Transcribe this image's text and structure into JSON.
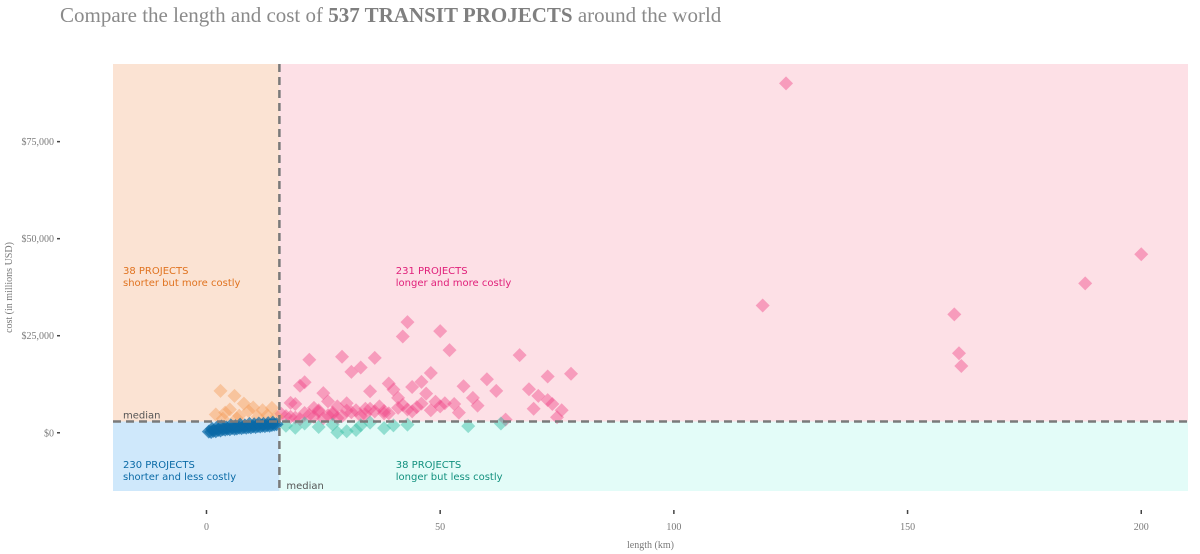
{
  "title": {
    "prefix": "Compare the length and cost of ",
    "highlight": "537 TRANSIT PROJECTS",
    "suffix": " around the world"
  },
  "chart_data": {
    "type": "scatter",
    "xlabel": "length (km)",
    "ylabel": "cost (in millions USD)",
    "xlim": [
      -20,
      210
    ],
    "ylim": [
      -15000,
      95000
    ],
    "x_ticks": [
      0,
      50,
      100,
      150,
      200
    ],
    "x_tick_labels": [
      "0",
      "50",
      "100",
      "150",
      "200"
    ],
    "y_ticks": [
      0,
      25000,
      50000,
      75000
    ],
    "y_tick_labels": [
      "$0",
      "$25,000",
      "$50,000",
      "$75,000"
    ],
    "grid": false,
    "median": {
      "x": 15.6,
      "y": 2900,
      "label": "median"
    },
    "quadrants": [
      {
        "id": "shorter-more",
        "count_label": "38 PROJECTS",
        "desc": "shorter but more costly",
        "text_color": "#e07320",
        "bg_color": "#fbe3d3"
      },
      {
        "id": "longer-more",
        "count_label": "231 PROJECTS",
        "desc": "longer and more costly",
        "text_color": "#e0207a",
        "bg_color": "#fde0e6"
      },
      {
        "id": "shorter-less",
        "count_label": "230 PROJECTS",
        "desc": "shorter and less costly",
        "text_color": "#0a6aa6",
        "bg_color": "#cfe8fb"
      },
      {
        "id": "longer-less",
        "count_label": "38 PROJECTS",
        "desc": "longer but less costly",
        "text_color": "#12907e",
        "bg_color": "#e3fcf8"
      }
    ],
    "series": [
      {
        "quadrant": "longer-more",
        "color": "#f0498a",
        "x": [
          124,
          200,
          188,
          119,
          160,
          161,
          161.5,
          43,
          42,
          50,
          52,
          33,
          48,
          67,
          78,
          73,
          69,
          22,
          29,
          36,
          60,
          71,
          73,
          21,
          39,
          44,
          46,
          55,
          57,
          62,
          75,
          20,
          25,
          31,
          35,
          40,
          41,
          47,
          53,
          18,
          19,
          23,
          24,
          26,
          28,
          30,
          32,
          34,
          37,
          38,
          42,
          45,
          49,
          51,
          16,
          17,
          18,
          20,
          21,
          22,
          24,
          26,
          27,
          28,
          30,
          33,
          35,
          38,
          41,
          44,
          46,
          50,
          54,
          58,
          64,
          70,
          74,
          76,
          19,
          23,
          25,
          27,
          29,
          31,
          34,
          36,
          39,
          43,
          48
        ],
        "y": [
          90000,
          46000,
          38500,
          32800,
          30500,
          20500,
          17200,
          28500,
          24800,
          26200,
          21300,
          16800,
          15400,
          20000,
          15200,
          14500,
          11200,
          18800,
          19600,
          19300,
          13800,
          9500,
          8400,
          13000,
          12700,
          11800,
          13100,
          12000,
          9000,
          10800,
          4000,
          12100,
          10200,
          15700,
          10700,
          11100,
          9000,
          10100,
          7400,
          7700,
          7400,
          6400,
          5800,
          8100,
          6800,
          7600,
          5800,
          6200,
          6800,
          5600,
          7200,
          6600,
          8000,
          7600,
          4900,
          4300,
          4100,
          3500,
          5100,
          4600,
          5500,
          4500,
          5200,
          3800,
          5700,
          4400,
          6200,
          5000,
          6400,
          5500,
          7500,
          6800,
          5200,
          7000,
          3400,
          6200,
          7400,
          5800,
          3900,
          4100,
          3700,
          4800,
          4300,
          5300,
          4700,
          5500,
          5000,
          6000,
          5800
        ]
      },
      {
        "quadrant": "shorter-more",
        "color": "#f59d5c",
        "x": [
          3,
          6,
          8,
          10,
          12,
          5,
          14,
          2,
          4,
          7,
          9,
          11,
          13,
          15,
          3.5,
          6.5
        ],
        "y": [
          10800,
          9500,
          7500,
          6500,
          5800,
          6000,
          6400,
          4700,
          5200,
          4400,
          5600,
          4100,
          4500,
          4200,
          3600,
          3700
        ]
      },
      {
        "quadrant": "longer-less",
        "color": "#3fbfa8",
        "x": [
          17,
          19,
          21,
          24,
          27,
          30,
          33,
          35,
          38,
          40,
          43,
          56,
          63,
          28,
          32
        ],
        "y": [
          1800,
          1300,
          2400,
          1500,
          2100,
          400,
          1900,
          2600,
          1200,
          1900,
          2100,
          1700,
          2400,
          100,
          700
        ],
        "opacity": 0.5
      },
      {
        "quadrant": "shorter-less",
        "color": "#0a6aa6",
        "x": [
          0.5,
          1,
          1.5,
          2,
          2.5,
          3,
          3.5,
          4,
          4.5,
          5,
          5.5,
          6,
          6.5,
          7,
          7.5,
          8,
          8.5,
          9,
          9.5,
          10,
          10.5,
          11,
          11.5,
          12,
          12.5,
          13,
          13.5,
          14,
          14.5,
          15,
          1.2,
          2.2,
          3.2,
          4.2,
          5.2,
          6.2,
          7.2,
          8.2,
          9.2,
          10.2,
          11.2,
          12.2,
          13.2,
          14.2
        ],
        "y": [
          300,
          200,
          500,
          400,
          700,
          600,
          900,
          800,
          1000,
          900,
          1200,
          1000,
          1100,
          1300,
          1200,
          1400,
          1300,
          1500,
          1400,
          1600,
          1500,
          1700,
          1600,
          1800,
          1700,
          1900,
          1800,
          2000,
          2100,
          2200,
          1000,
          1300,
          1600,
          1400,
          1900,
          1700,
          2100,
          1900,
          2300,
          2200,
          2400,
          2300,
          2500,
          2600
        ],
        "opacity": 0.7
      }
    ]
  }
}
